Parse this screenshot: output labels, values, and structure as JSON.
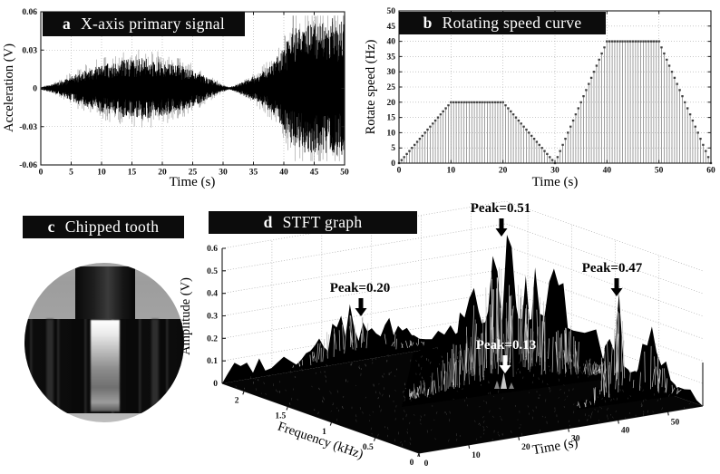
{
  "figure": {
    "background": "#ffffff",
    "bar_color": "#0c0c0c",
    "bar_text_color": "#ffffff"
  },
  "panels": {
    "a": {
      "letter": "a",
      "title": "X-axis primary signal"
    },
    "b": {
      "letter": "b",
      "title": "Rotating speed curve"
    },
    "c": {
      "letter": "c",
      "title": "Chipped tooth",
      "photo": "gear-close-up-with-bright-chipped-tooth"
    },
    "d": {
      "letter": "d",
      "title": "STFT graph"
    }
  },
  "chart_data": [
    {
      "id": "a",
      "type": "line",
      "title": "X-axis primary signal",
      "xlabel": "Time (s)",
      "ylabel": "Acceleration (V)",
      "xlim": [
        0,
        50
      ],
      "ylim": [
        -0.06,
        0.06
      ],
      "xticks": [
        "0",
        "5",
        "10",
        "15",
        "20",
        "25",
        "30",
        "35",
        "40",
        "45",
        "50"
      ],
      "yticks": [
        "0.06",
        "0.03",
        "0",
        "-0.03",
        "-0.06"
      ],
      "grid": "dotted",
      "description": "Dense broadband vibration waveform; envelope grows to about 0.02 V near 15 s, shrinks to near 0 at 31 s, then grows to about 0.05 V between 40 and 50 s.",
      "envelope": [
        [
          0,
          0.0008
        ],
        [
          3,
          0.004
        ],
        [
          6,
          0.01
        ],
        [
          10,
          0.0155
        ],
        [
          14,
          0.019
        ],
        [
          17,
          0.02
        ],
        [
          20,
          0.018
        ],
        [
          24,
          0.014
        ],
        [
          27,
          0.008
        ],
        [
          30,
          0.002
        ],
        [
          31,
          0.0008
        ],
        [
          32,
          0.002
        ],
        [
          34,
          0.006
        ],
        [
          36,
          0.01
        ],
        [
          38,
          0.016
        ],
        [
          40,
          0.028
        ],
        [
          42,
          0.04
        ],
        [
          44,
          0.044
        ],
        [
          46,
          0.042
        ],
        [
          48,
          0.046
        ],
        [
          50,
          0.043
        ]
      ]
    },
    {
      "id": "b",
      "type": "stem",
      "title": "Rotating speed curve",
      "xlabel": "Time (s)",
      "ylabel": "Rotate speed (Hz)",
      "xlim": [
        0,
        60
      ],
      "ylim": [
        0,
        50
      ],
      "xticks": [
        "0",
        "10",
        "20",
        "30",
        "40",
        "50",
        "60"
      ],
      "yticks": [
        "0",
        "5",
        "10",
        "15",
        "20",
        "25",
        "30",
        "35",
        "40",
        "45",
        "50"
      ],
      "grid": "dotted",
      "stem_interval_s": 0.5,
      "profile": [
        [
          0,
          0
        ],
        [
          10,
          20
        ],
        [
          20,
          20
        ],
        [
          30,
          0
        ],
        [
          40,
          40
        ],
        [
          50,
          40
        ],
        [
          60,
          0
        ]
      ]
    },
    {
      "id": "d",
      "type": "surface3d",
      "title": "STFT graph",
      "xlabel": "Time (s)",
      "ylabel": "Frequency (kHz)",
      "zlabel": "Amplitude (V)",
      "xlim": [
        0,
        57
      ],
      "ylim": [
        0,
        2.25
      ],
      "zlim": [
        0,
        0.6
      ],
      "xticks": [
        "0",
        "10",
        "20",
        "30",
        "40",
        "50"
      ],
      "yticks": [
        "0",
        "0.5",
        "1",
        "1.5",
        "2"
      ],
      "zticks": [
        "0",
        "0.1",
        "0.2",
        "0.3",
        "0.4",
        "0.5",
        "0.6"
      ],
      "annotations": [
        {
          "label": "Peak=0.20",
          "value": 0.2,
          "color": "#000000"
        },
        {
          "label": "Peak=0.51",
          "value": 0.51,
          "color": "#000000"
        },
        {
          "label": "Peak=0.13",
          "value": 0.13,
          "color": "#ffffff"
        },
        {
          "label": "Peak=0.47",
          "value": 0.47,
          "color": "#000000"
        }
      ]
    }
  ]
}
